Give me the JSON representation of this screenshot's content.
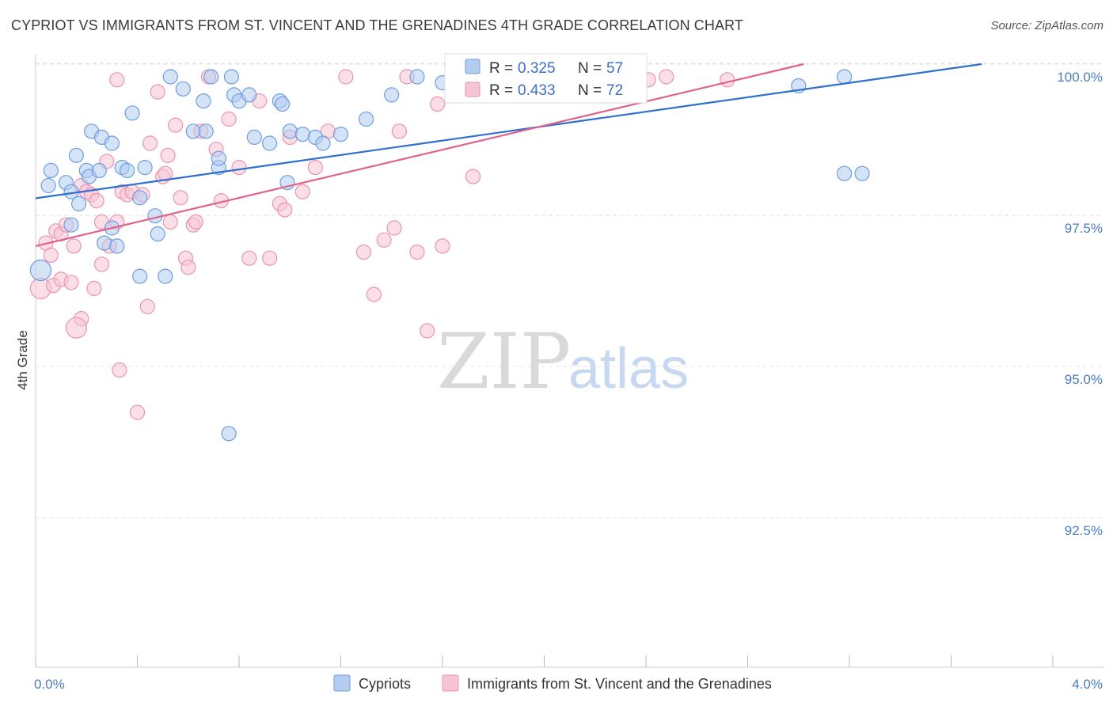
{
  "title": "CYPRIOT VS IMMIGRANTS FROM ST. VINCENT AND THE GRENADINES 4TH GRADE CORRELATION CHART",
  "source": "Source: ZipAtlas.com",
  "watermark": {
    "zip": "ZIP",
    "atlas": "atlas"
  },
  "colors": {
    "blue": "#6d9ee0",
    "blue_fill": "#b3ccf0",
    "blue_line": "#2f6fce",
    "pink": "#ec93ae",
    "pink_fill": "#f6c4d3",
    "pink_line": "#e0628e",
    "grid": "#e3e3e3",
    "axis_text": "#4a7cc4"
  },
  "chart_data": {
    "type": "scatter",
    "title": "CYPRIOT VS IMMIGRANTS FROM ST. VINCENT AND THE GRENADINES 4TH GRADE CORRELATION CHART",
    "xlabel": "",
    "ylabel": "4th Grade",
    "xlim": [
      0.0,
      4.0
    ],
    "ylim": [
      90.0,
      100.2
    ],
    "x_tick_labels": [
      "0.0%",
      "4.0%"
    ],
    "y_ticks": [
      92.5,
      95.0,
      97.5,
      100.0
    ],
    "y_tick_labels": [
      "92.5%",
      "95.0%",
      "97.5%",
      "100.0%"
    ],
    "grid": true,
    "legend_position": "top-center",
    "legend": [
      {
        "series": "Cypriots",
        "r_label": "R =",
        "r_value": "0.325",
        "n_label": "N =",
        "n_value": "57"
      },
      {
        "series": "Immigrants from St. Vincent and the Grenadines",
        "r_label": "R =",
        "r_value": "0.433",
        "n_label": "N =",
        "n_value": "72"
      }
    ],
    "series": [
      {
        "name": "Cypriots",
        "color": "#6d9ee0",
        "trend": {
          "x": [
            0.0,
            3.72
          ],
          "y": [
            98.2,
            100.0
          ]
        },
        "points": [
          [
            0.06,
            98.45
          ],
          [
            0.05,
            98.2
          ],
          [
            0.12,
            98.25
          ],
          [
            0.16,
            98.7
          ],
          [
            0.2,
            98.45
          ],
          [
            0.14,
            98.1
          ],
          [
            0.17,
            97.9
          ],
          [
            0.14,
            97.55
          ],
          [
            0.21,
            98.35
          ],
          [
            0.25,
            98.45
          ],
          [
            0.22,
            99.1
          ],
          [
            0.26,
            99.0
          ],
          [
            0.3,
            98.9
          ],
          [
            0.34,
            98.5
          ],
          [
            0.36,
            98.45
          ],
          [
            0.38,
            99.4
          ],
          [
            0.41,
            98.0
          ],
          [
            0.43,
            98.5
          ],
          [
            0.47,
            97.7
          ],
          [
            0.3,
            97.5
          ],
          [
            0.27,
            97.25
          ],
          [
            0.32,
            97.2
          ],
          [
            0.48,
            97.4
          ],
          [
            0.51,
            96.7
          ],
          [
            0.41,
            96.7
          ],
          [
            0.53,
            100.0
          ],
          [
            0.58,
            99.8
          ],
          [
            0.66,
            99.6
          ],
          [
            0.69,
            100.0
          ],
          [
            0.77,
            100.0
          ],
          [
            0.62,
            99.1
          ],
          [
            0.67,
            99.1
          ],
          [
            0.72,
            98.5
          ],
          [
            0.72,
            98.65
          ],
          [
            0.78,
            99.7
          ],
          [
            0.8,
            99.6
          ],
          [
            0.84,
            99.7
          ],
          [
            0.86,
            99.0
          ],
          [
            0.92,
            98.9
          ],
          [
            0.96,
            99.6
          ],
          [
            0.97,
            99.55
          ],
          [
            0.99,
            98.25
          ],
          [
            1.0,
            99.1
          ],
          [
            1.05,
            99.05
          ],
          [
            1.1,
            99.0
          ],
          [
            1.13,
            98.9
          ],
          [
            1.2,
            99.05
          ],
          [
            1.3,
            99.3
          ],
          [
            1.4,
            99.7
          ],
          [
            1.5,
            100.0
          ],
          [
            1.6,
            99.9
          ],
          [
            0.76,
            94.1
          ],
          [
            3.0,
            99.85
          ],
          [
            3.18,
            100.0
          ],
          [
            3.18,
            98.4
          ],
          [
            3.25,
            98.4
          ],
          [
            0.02,
            96.8
          ]
        ]
      },
      {
        "name": "Immigrants from St. Vincent and the Grenadines",
        "color": "#ec93ae",
        "trend": {
          "x": [
            0.0,
            3.02
          ],
          "y": [
            97.2,
            100.0
          ]
        },
        "points": [
          [
            0.02,
            96.5
          ],
          [
            0.04,
            97.25
          ],
          [
            0.06,
            97.05
          ],
          [
            0.07,
            96.55
          ],
          [
            0.08,
            97.45
          ],
          [
            0.1,
            97.4
          ],
          [
            0.12,
            97.55
          ],
          [
            0.1,
            96.65
          ],
          [
            0.14,
            96.6
          ],
          [
            0.15,
            97.2
          ],
          [
            0.18,
            96.0
          ],
          [
            0.16,
            95.85
          ],
          [
            0.18,
            98.2
          ],
          [
            0.2,
            98.1
          ],
          [
            0.22,
            98.05
          ],
          [
            0.24,
            97.95
          ],
          [
            0.26,
            97.6
          ],
          [
            0.28,
            98.6
          ],
          [
            0.23,
            96.5
          ],
          [
            0.26,
            96.9
          ],
          [
            0.29,
            97.2
          ],
          [
            0.32,
            97.6
          ],
          [
            0.34,
            98.1
          ],
          [
            0.36,
            98.05
          ],
          [
            0.38,
            98.1
          ],
          [
            0.42,
            98.05
          ],
          [
            0.44,
            96.2
          ],
          [
            0.45,
            98.9
          ],
          [
            0.48,
            99.75
          ],
          [
            0.5,
            98.35
          ],
          [
            0.51,
            98.4
          ],
          [
            0.52,
            98.7
          ],
          [
            0.53,
            97.6
          ],
          [
            0.55,
            99.2
          ],
          [
            0.57,
            98.0
          ],
          [
            0.59,
            97.0
          ],
          [
            0.6,
            96.85
          ],
          [
            0.62,
            97.55
          ],
          [
            0.63,
            97.6
          ],
          [
            0.65,
            99.1
          ],
          [
            0.68,
            100.0
          ],
          [
            0.71,
            98.8
          ],
          [
            0.73,
            97.95
          ],
          [
            0.76,
            99.3
          ],
          [
            0.8,
            98.5
          ],
          [
            0.84,
            97.0
          ],
          [
            0.88,
            99.6
          ],
          [
            0.92,
            97.0
          ],
          [
            0.96,
            97.9
          ],
          [
            0.98,
            97.8
          ],
          [
            1.0,
            99.0
          ],
          [
            1.05,
            98.1
          ],
          [
            1.1,
            98.5
          ],
          [
            1.15,
            99.1
          ],
          [
            1.22,
            100.0
          ],
          [
            1.29,
            97.1
          ],
          [
            1.33,
            96.4
          ],
          [
            1.37,
            97.3
          ],
          [
            1.41,
            97.5
          ],
          [
            1.43,
            99.1
          ],
          [
            1.46,
            100.0
          ],
          [
            1.5,
            97.1
          ],
          [
            1.54,
            95.8
          ],
          [
            1.58,
            99.55
          ],
          [
            1.6,
            97.2
          ],
          [
            1.72,
            98.35
          ],
          [
            0.33,
            95.15
          ],
          [
            0.4,
            94.45
          ],
          [
            0.32,
            99.95
          ],
          [
            2.41,
            99.95
          ],
          [
            2.48,
            100.0
          ],
          [
            2.72,
            99.95
          ]
        ]
      }
    ]
  }
}
